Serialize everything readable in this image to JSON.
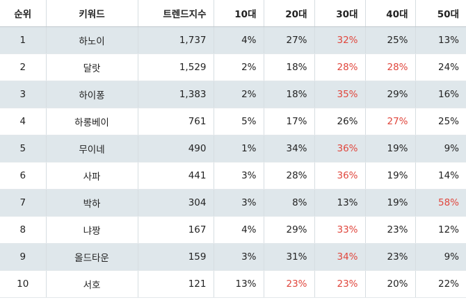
{
  "table": {
    "columns": [
      "순위",
      "키워드",
      "트렌드지수",
      "10대",
      "20대",
      "30대",
      "40대",
      "50대"
    ],
    "rows": [
      {
        "rank": "1",
        "keyword": "하노이",
        "index": "1,737",
        "age": [
          "4%",
          "27%",
          "32%",
          "25%",
          "13%"
        ],
        "highlight": [
          false,
          false,
          true,
          false,
          false
        ]
      },
      {
        "rank": "2",
        "keyword": "달랏",
        "index": "1,529",
        "age": [
          "2%",
          "18%",
          "28%",
          "28%",
          "24%"
        ],
        "highlight": [
          false,
          false,
          true,
          true,
          false
        ]
      },
      {
        "rank": "3",
        "keyword": "하이퐁",
        "index": "1,383",
        "age": [
          "2%",
          "18%",
          "35%",
          "29%",
          "16%"
        ],
        "highlight": [
          false,
          false,
          true,
          false,
          false
        ]
      },
      {
        "rank": "4",
        "keyword": "하롱베이",
        "index": "761",
        "age": [
          "5%",
          "17%",
          "26%",
          "27%",
          "25%"
        ],
        "highlight": [
          false,
          false,
          false,
          true,
          false
        ]
      },
      {
        "rank": "5",
        "keyword": "무이네",
        "index": "490",
        "age": [
          "1%",
          "34%",
          "36%",
          "19%",
          "9%"
        ],
        "highlight": [
          false,
          false,
          true,
          false,
          false
        ]
      },
      {
        "rank": "6",
        "keyword": "사파",
        "index": "441",
        "age": [
          "3%",
          "28%",
          "36%",
          "19%",
          "14%"
        ],
        "highlight": [
          false,
          false,
          true,
          false,
          false
        ]
      },
      {
        "rank": "7",
        "keyword": "박하",
        "index": "304",
        "age": [
          "3%",
          "8%",
          "13%",
          "19%",
          "58%"
        ],
        "highlight": [
          false,
          false,
          false,
          false,
          true
        ]
      },
      {
        "rank": "8",
        "keyword": "냐짱",
        "index": "167",
        "age": [
          "4%",
          "29%",
          "33%",
          "23%",
          "12%"
        ],
        "highlight": [
          false,
          false,
          true,
          false,
          false
        ]
      },
      {
        "rank": "9",
        "keyword": "올드타운",
        "index": "159",
        "age": [
          "3%",
          "31%",
          "34%",
          "23%",
          "9%"
        ],
        "highlight": [
          false,
          false,
          true,
          false,
          false
        ]
      },
      {
        "rank": "10",
        "keyword": "서호",
        "index": "121",
        "age": [
          "13%",
          "23%",
          "23%",
          "20%",
          "22%"
        ],
        "highlight": [
          false,
          true,
          true,
          false,
          false
        ]
      }
    ]
  },
  "colors": {
    "highlight": "#e0463c",
    "stripe": "#dfe7eb",
    "text": "#222222"
  }
}
